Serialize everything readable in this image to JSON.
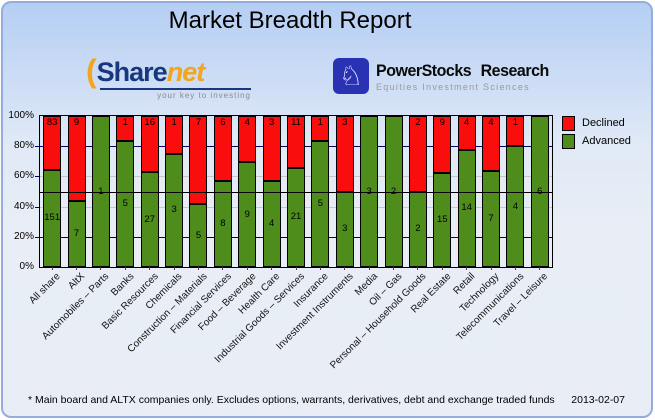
{
  "header": {
    "title": "Market Breadth Report"
  },
  "logos": {
    "sharenet": {
      "paren": "(",
      "name_part1": "Share",
      "name_part2": "net",
      "tagline": "your key to investing"
    },
    "powerstocks": {
      "icon": "knight-chess-icon",
      "icon_glyph": "♘",
      "name_part1": "PowerStocks",
      "name_part2": "Research",
      "tagline": "Equities Investment Sciences"
    }
  },
  "chart_data": {
    "type": "bar",
    "stacked": true,
    "stacked_percent": true,
    "title": "Market Breadth Report",
    "categories": [
      "All share",
      "AltX",
      "Automobiles – Parts",
      "Banks",
      "Basic Resources",
      "Chemicals",
      "Construction – Materials",
      "Financial Services",
      "Food – Beverage",
      "Health Care",
      "Industrial Goods – Services",
      "Insurance",
      "Investment Instruments",
      "Media",
      "Oil – Gas",
      "Personal – Household Goods",
      "Real Estate",
      "Retail",
      "Technology",
      "Telecommunications",
      "Travel – Leisure"
    ],
    "series": [
      {
        "name": "Declined",
        "color": "#f90d0d",
        "values": [
          83,
          9,
          0,
          1,
          16,
          1,
          7,
          6,
          4,
          3,
          11,
          1,
          3,
          0,
          0,
          2,
          9,
          4,
          4,
          1,
          0
        ]
      },
      {
        "name": "Advanced",
        "color": "#4e8c1c",
        "values": [
          151,
          7,
          1,
          5,
          27,
          3,
          5,
          8,
          9,
          4,
          21,
          5,
          3,
          3,
          2,
          2,
          15,
          14,
          7,
          4,
          6
        ]
      }
    ],
    "y_ticks": [
      "100%",
      "80%",
      "60%",
      "40%",
      "20%",
      "0%"
    ],
    "y_tick_values": [
      100,
      80,
      60,
      40,
      20,
      0
    ],
    "ylim": [
      0,
      100
    ],
    "gridlines": {
      "navy": [
        80,
        20
      ],
      "gray": [
        60,
        40
      ],
      "reference": 50
    },
    "legend_position": "right",
    "grid": true
  },
  "footer": {
    "note": "* Main board and ALTX companies only. Excludes options, warrants, derivatives, debt and exchange traded funds",
    "date": "2013-02-07"
  }
}
